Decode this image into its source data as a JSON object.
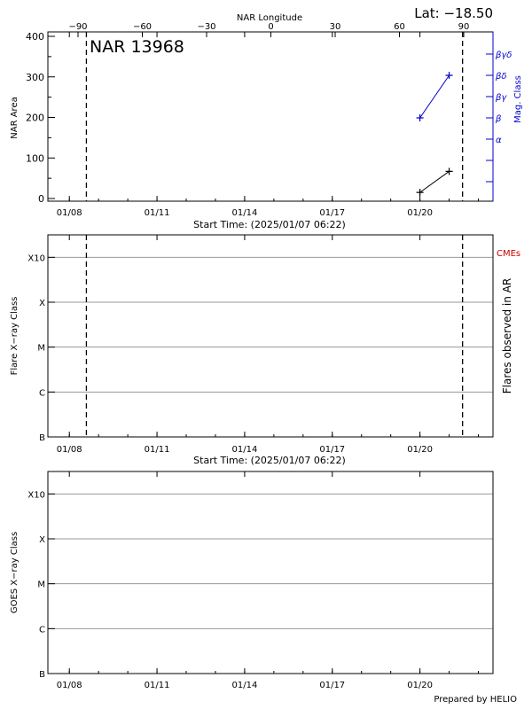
{
  "chart_data": [
    {
      "type": "line",
      "panel": "area",
      "title": "NAR 13968",
      "latitude_label": "Lat: −18.50",
      "ylabel": "NAR Area",
      "ylim": [
        0,
        400
      ],
      "y_ticks": [
        0,
        100,
        200,
        300,
        400
      ],
      "top_axis_label": "NAR Longitude",
      "top_ticks": [
        "−90",
        "−60",
        "−30",
        "0",
        "30",
        "60",
        "90"
      ],
      "right_axis_label": "Mag. Class",
      "right_ticks": [
        "α",
        "β",
        "βγ",
        "βδ",
        "βγδ"
      ],
      "x_tick_labels": [
        "01/08",
        "01/11",
        "01/14",
        "01/17",
        "01/20"
      ],
      "xlabel": "Start Time: (2025/01/07 06:22)",
      "markers": [
        "2025-01-08T14:00",
        "2025-01-21T11:00"
      ],
      "series": [
        {
          "color": "#000000",
          "axis": "left",
          "points": [
            [
              "2025-01-20T00:00",
              15
            ],
            [
              "2025-01-21T00:00",
              67
            ]
          ]
        },
        {
          "color": "#0000cc",
          "axis": "right",
          "points": [
            [
              "2025-01-20T00:00",
              "β"
            ],
            [
              "2025-01-21T00:00",
              "βδ"
            ]
          ]
        }
      ]
    },
    {
      "type": "scatter",
      "panel": "flares",
      "ylabel": "Flare X−ray Class",
      "y_ticks": [
        "B",
        "C",
        "M",
        "X",
        "X10"
      ],
      "right_axis_label": "Flares observed in AR",
      "right_top_label": "CMEs",
      "x_tick_labels": [
        "01/08",
        "01/11",
        "01/14",
        "01/17",
        "01/20"
      ],
      "xlabel": "Start Time: (2025/01/07 06:22)",
      "markers": [
        "2025-01-08T14:00",
        "2025-01-21T11:00"
      ],
      "series": []
    },
    {
      "type": "line",
      "panel": "goes",
      "ylabel": "GOES X−ray Class",
      "y_ticks": [
        "B",
        "C",
        "M",
        "X",
        "X10"
      ],
      "x_tick_labels": [
        "01/08",
        "01/11",
        "01/14",
        "01/17",
        "01/20"
      ],
      "series": []
    }
  ],
  "footer": {
    "credit": "Prepared by HELIO"
  },
  "colors": {
    "axis": "#000000",
    "mag_class": "#0000cc",
    "cme": "#cc0000",
    "grid": "#9a9a9a"
  }
}
